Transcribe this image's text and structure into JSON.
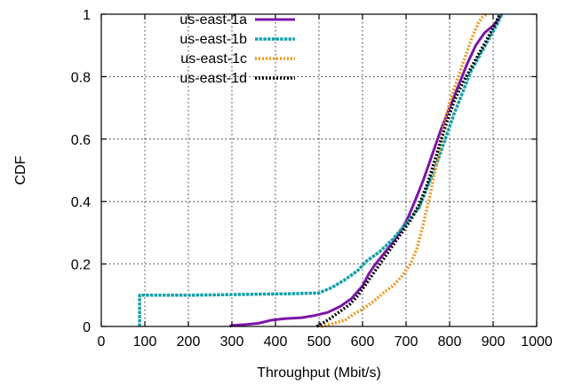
{
  "chart_data": {
    "type": "line",
    "xlabel": "Throughput (Mbit/s)",
    "ylabel": "CDF",
    "xlim": [
      0,
      1000
    ],
    "ylim": [
      0,
      1
    ],
    "xticks": [
      "0",
      "100",
      "200",
      "300",
      "400",
      "500",
      "600",
      "700",
      "800",
      "900",
      "1000"
    ],
    "yticks": [
      "0",
      "0.2",
      "0.4",
      "0.6",
      "0.8",
      "1"
    ],
    "grid": true,
    "legend_position": "top-left",
    "series": [
      {
        "name": "us-east-1a",
        "color": "#7b16a8",
        "style": "solid",
        "points": [
          [
            295,
            0
          ],
          [
            300,
            0.003
          ],
          [
            330,
            0.006
          ],
          [
            360,
            0.01
          ],
          [
            390,
            0.02
          ],
          [
            420,
            0.025
          ],
          [
            460,
            0.028
          ],
          [
            490,
            0.035
          ],
          [
            520,
            0.045
          ],
          [
            550,
            0.065
          ],
          [
            575,
            0.09
          ],
          [
            600,
            0.13
          ],
          [
            615,
            0.17
          ],
          [
            630,
            0.2
          ],
          [
            650,
            0.235
          ],
          [
            670,
            0.27
          ],
          [
            690,
            0.31
          ],
          [
            705,
            0.35
          ],
          [
            720,
            0.4
          ],
          [
            740,
            0.47
          ],
          [
            760,
            0.55
          ],
          [
            780,
            0.63
          ],
          [
            800,
            0.7
          ],
          [
            820,
            0.77
          ],
          [
            840,
            0.84
          ],
          [
            860,
            0.9
          ],
          [
            880,
            0.94
          ],
          [
            905,
            0.97
          ],
          [
            920,
            1.0
          ]
        ]
      },
      {
        "name": "us-east-1b",
        "color": "#14a0a8",
        "style": "dashed",
        "points": [
          [
            88,
            0
          ],
          [
            88,
            0.1
          ],
          [
            200,
            0.1
          ],
          [
            350,
            0.103
          ],
          [
            450,
            0.105
          ],
          [
            500,
            0.107
          ],
          [
            530,
            0.125
          ],
          [
            560,
            0.15
          ],
          [
            590,
            0.18
          ],
          [
            610,
            0.21
          ],
          [
            640,
            0.24
          ],
          [
            670,
            0.28
          ],
          [
            700,
            0.33
          ],
          [
            730,
            0.38
          ],
          [
            750,
            0.45
          ],
          [
            770,
            0.52
          ],
          [
            790,
            0.6
          ],
          [
            810,
            0.68
          ],
          [
            830,
            0.75
          ],
          [
            850,
            0.82
          ],
          [
            870,
            0.87
          ],
          [
            890,
            0.92
          ],
          [
            910,
            0.97
          ],
          [
            920,
            1.0
          ]
        ]
      },
      {
        "name": "us-east-1c",
        "color": "#f0961e",
        "style": "dotted",
        "points": [
          [
            505,
            0
          ],
          [
            520,
            0.005
          ],
          [
            560,
            0.02
          ],
          [
            580,
            0.04
          ],
          [
            600,
            0.055
          ],
          [
            625,
            0.08
          ],
          [
            650,
            0.11
          ],
          [
            670,
            0.13
          ],
          [
            690,
            0.16
          ],
          [
            710,
            0.2
          ],
          [
            725,
            0.25
          ],
          [
            740,
            0.33
          ],
          [
            755,
            0.42
          ],
          [
            770,
            0.52
          ],
          [
            785,
            0.63
          ],
          [
            800,
            0.72
          ],
          [
            820,
            0.8
          ],
          [
            835,
            0.86
          ],
          [
            850,
            0.92
          ],
          [
            865,
            0.97
          ],
          [
            875,
            0.99
          ],
          [
            885,
            1.0
          ]
        ]
      },
      {
        "name": "us-east-1d",
        "color": "#000000",
        "style": "dotted",
        "points": [
          [
            495,
            0
          ],
          [
            520,
            0.02
          ],
          [
            545,
            0.045
          ],
          [
            570,
            0.07
          ],
          [
            590,
            0.1
          ],
          [
            610,
            0.14
          ],
          [
            630,
            0.18
          ],
          [
            650,
            0.22
          ],
          [
            670,
            0.26
          ],
          [
            690,
            0.3
          ],
          [
            710,
            0.34
          ],
          [
            730,
            0.39
          ],
          [
            750,
            0.46
          ],
          [
            770,
            0.55
          ],
          [
            790,
            0.64
          ],
          [
            810,
            0.72
          ],
          [
            830,
            0.78
          ],
          [
            850,
            0.83
          ],
          [
            870,
            0.88
          ],
          [
            890,
            0.93
          ],
          [
            905,
            0.97
          ],
          [
            915,
            1.0
          ]
        ]
      }
    ]
  }
}
